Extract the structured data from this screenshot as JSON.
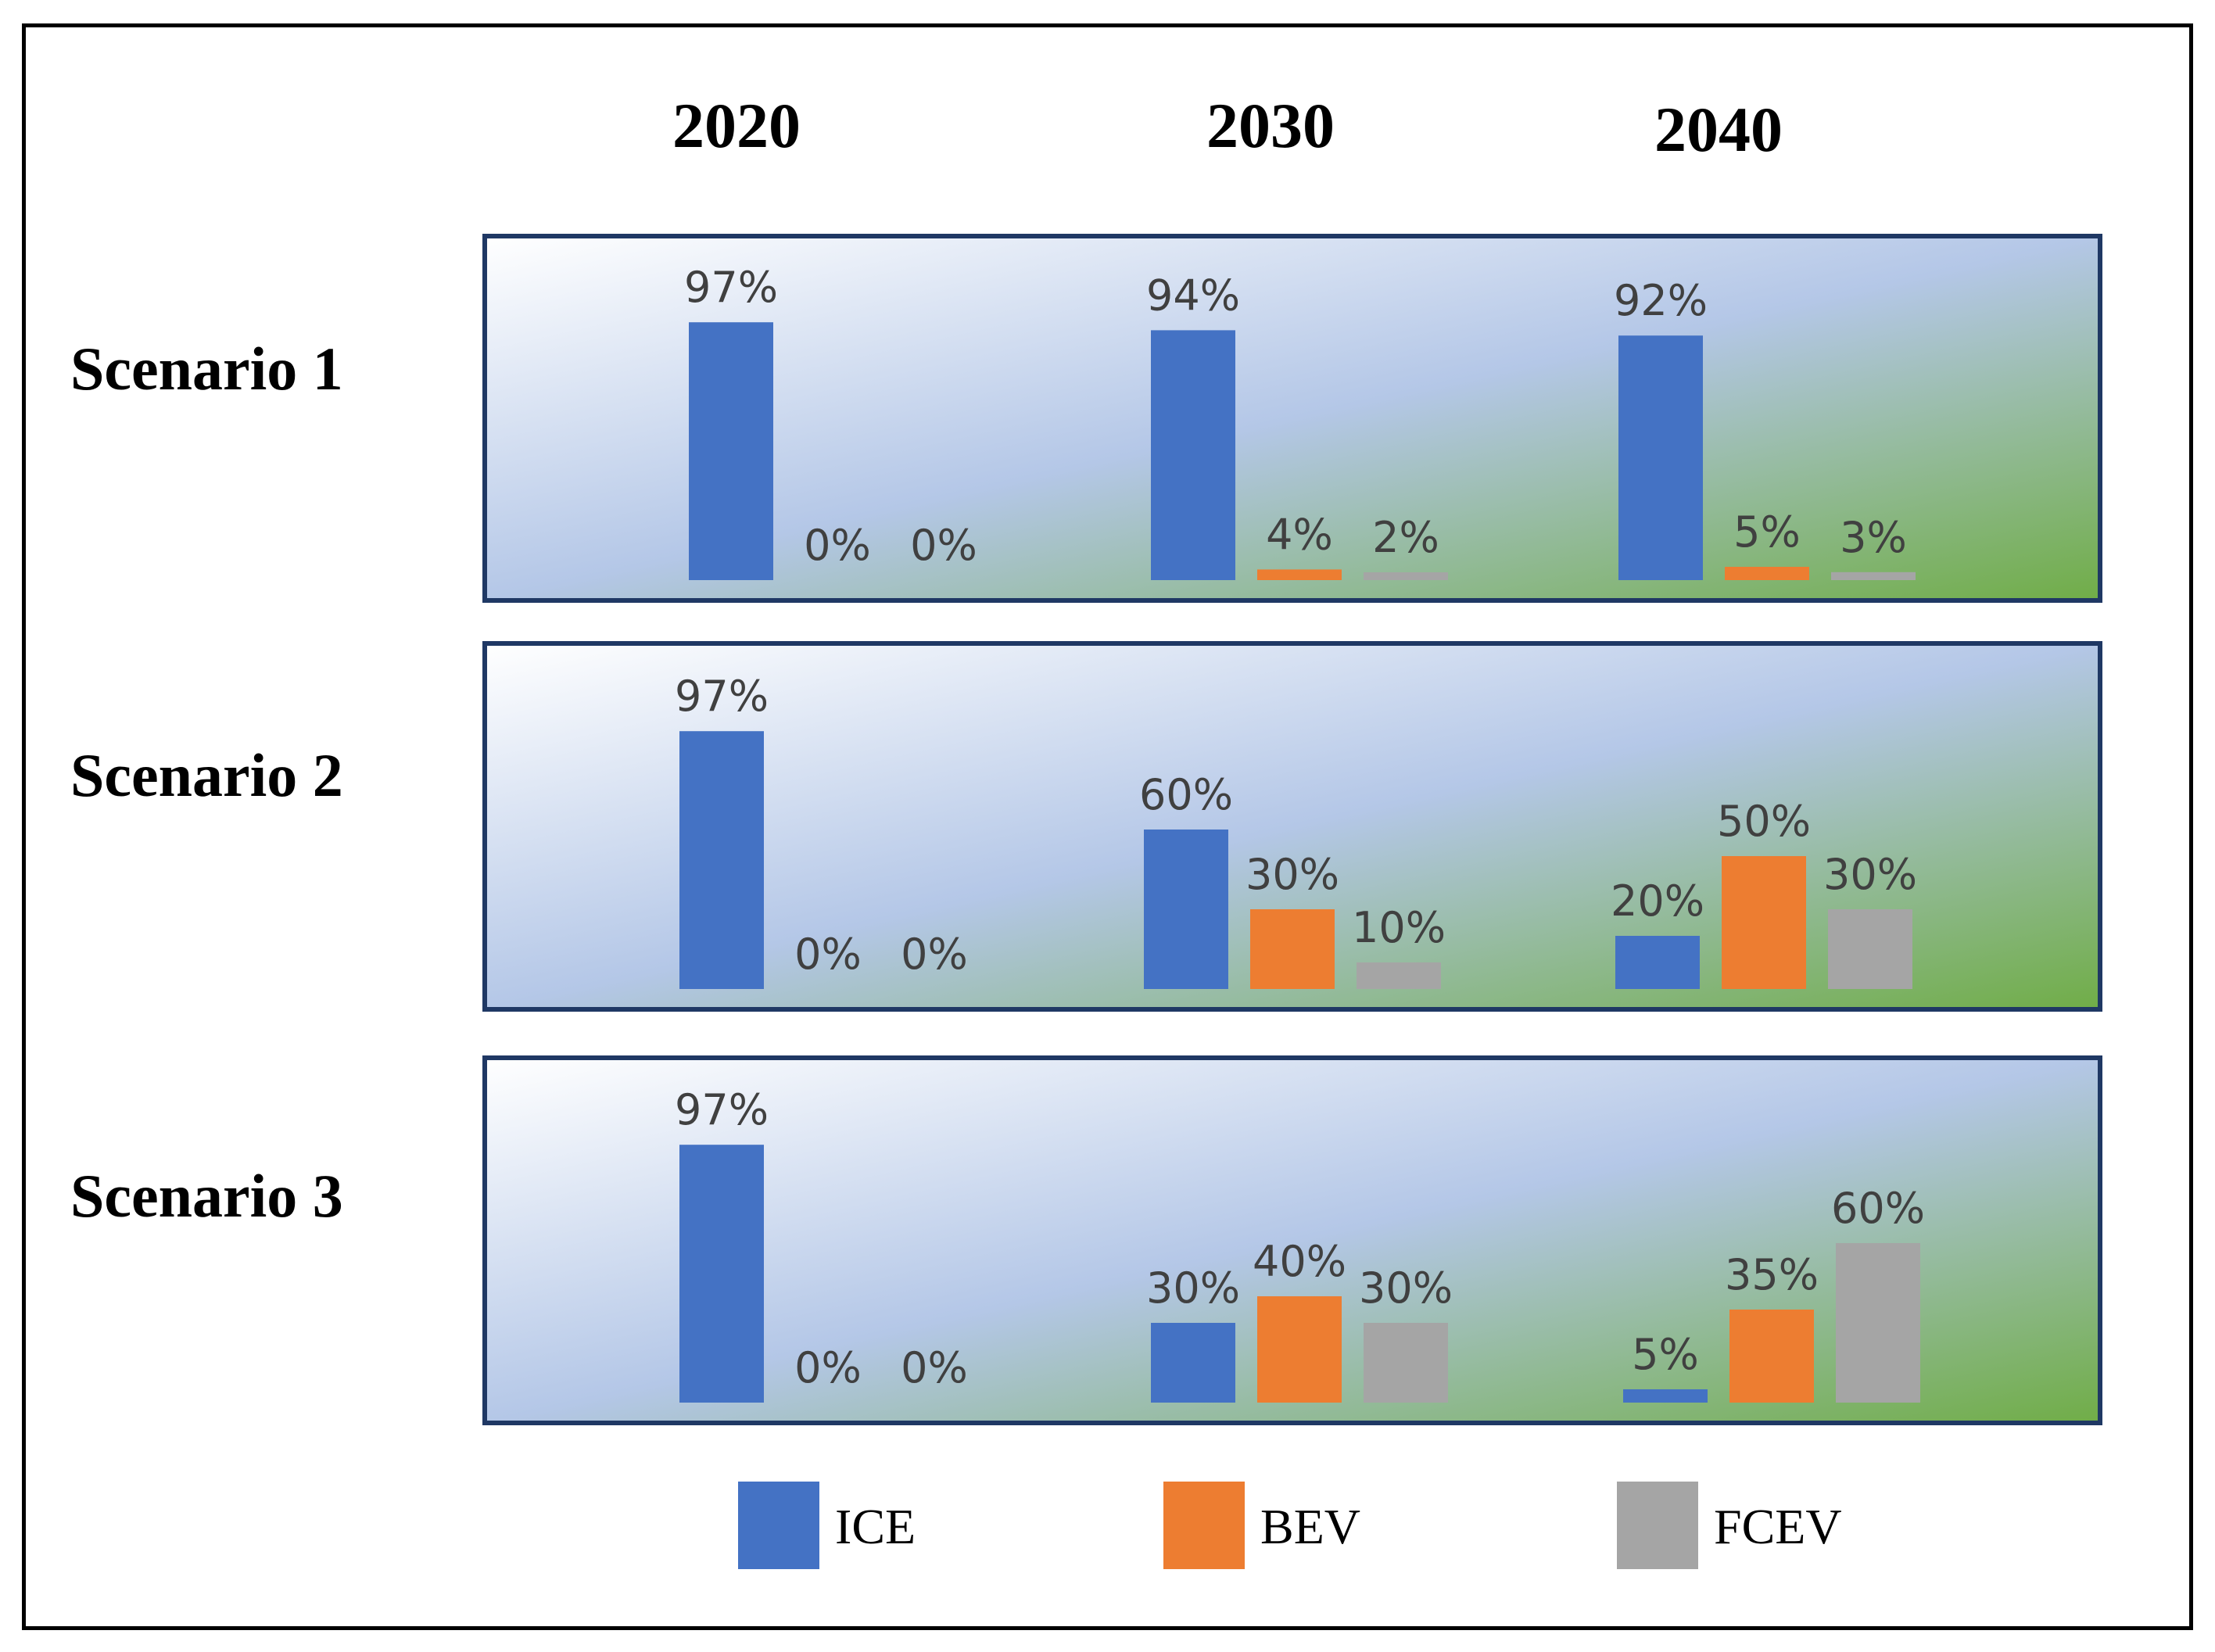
{
  "chart_data": {
    "type": "bar",
    "layout": "small-multiples",
    "years": [
      "2020",
      "2030",
      "2040"
    ],
    "series": [
      {
        "name": "ICE",
        "color": "#4472C4"
      },
      {
        "name": "BEV",
        "color": "#ED7D31"
      },
      {
        "name": "FCEV",
        "color": "#A5A5A5"
      }
    ],
    "panels": [
      {
        "label": "Scenario 1",
        "groups": [
          {
            "year": "2020",
            "values": [
              97,
              0,
              0
            ],
            "labels": [
              "97%",
              "0%",
              "0%"
            ]
          },
          {
            "year": "2030",
            "values": [
              94,
              4,
              2
            ],
            "labels": [
              "94%",
              "4%",
              "2%"
            ]
          },
          {
            "year": "2040",
            "values": [
              92,
              5,
              3
            ],
            "labels": [
              "92%",
              "5%",
              "3%"
            ]
          }
        ]
      },
      {
        "label": "Scenario 2",
        "groups": [
          {
            "year": "2020",
            "values": [
              97,
              0,
              0
            ],
            "labels": [
              "97%",
              "0%",
              "0%"
            ]
          },
          {
            "year": "2030",
            "values": [
              60,
              30,
              10
            ],
            "labels": [
              "60%",
              "30%",
              "10%"
            ]
          },
          {
            "year": "2040",
            "values": [
              20,
              50,
              30
            ],
            "labels": [
              "20%",
              "50%",
              "30%"
            ]
          }
        ]
      },
      {
        "label": "Scenario 3",
        "groups": [
          {
            "year": "2020",
            "values": [
              97,
              0,
              0
            ],
            "labels": [
              "97%",
              "0%",
              "0%"
            ]
          },
          {
            "year": "2030",
            "values": [
              30,
              40,
              30
            ],
            "labels": [
              "30%",
              "40%",
              "30%"
            ]
          },
          {
            "year": "2040",
            "values": [
              5,
              35,
              60
            ],
            "labels": [
              "5%",
              "35%",
              "60%"
            ]
          }
        ]
      }
    ],
    "panel_background": [
      "#FFFFFF",
      "#B4C7E7",
      "#70AD47"
    ],
    "panel_border_color": "#1F3864"
  }
}
